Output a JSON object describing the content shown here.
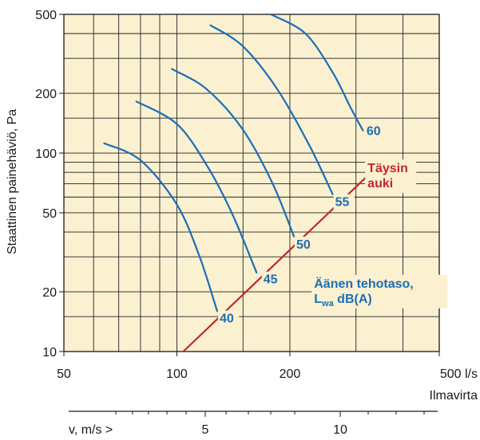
{
  "chart_data": {
    "type": "line",
    "x_scale": "log",
    "y_scale": "log",
    "xlim": [
      50,
      500
    ],
    "ylim": [
      10,
      500
    ],
    "grid": true,
    "plot_background": "#fbf0d0",
    "grid_color": "#222222",
    "x_tick_labels": [
      {
        "value": 50,
        "label": "50"
      },
      {
        "value": 100,
        "label": "100"
      },
      {
        "value": 200,
        "label": "200"
      },
      {
        "value": 500,
        "label": "500 l/s"
      }
    ],
    "y_tick_labels": [
      {
        "value": 10,
        "label": "10"
      },
      {
        "value": 20,
        "label": "20"
      },
      {
        "value": 50,
        "label": "50"
      },
      {
        "value": 100,
        "label": "100"
      },
      {
        "value": 200,
        "label": "200"
      },
      {
        "value": 500,
        "label": "500"
      }
    ],
    "xlabel": "Ilmavirta",
    "ylabel": "Staattinen painehäviö, Pa",
    "secondary_axis": {
      "label": "v, m/s >",
      "ticks": [
        {
          "value": 5,
          "label": "5",
          "x_at": 171
        },
        {
          "value": 10,
          "label": "10",
          "x_at": 340
        }
      ],
      "minor_tick_x_at": [
        59,
        80,
        100,
        123,
        147,
        197,
        225,
        253,
        283,
        375,
        410,
        445
      ]
    },
    "series": [
      {
        "name": "40",
        "color": "#1a6fb5",
        "points": [
          [
            64,
            112
          ],
          [
            80,
            92
          ],
          [
            100,
            55
          ],
          [
            115,
            30
          ],
          [
            128,
            16
          ]
        ]
      },
      {
        "name": "45",
        "color": "#1a6fb5",
        "points": [
          [
            78,
            182
          ],
          [
            100,
            140
          ],
          [
            120,
            87
          ],
          [
            140,
            50
          ],
          [
            163,
            25
          ]
        ]
      },
      {
        "name": "50",
        "color": "#1a6fb5",
        "points": [
          [
            97,
            265
          ],
          [
            120,
            210
          ],
          [
            150,
            131
          ],
          [
            180,
            70
          ],
          [
            205,
            38
          ]
        ]
      },
      {
        "name": "55",
        "color": "#1a6fb5",
        "points": [
          [
            123,
            440
          ],
          [
            150,
            345
          ],
          [
            185,
            210
          ],
          [
            225,
            110
          ],
          [
            260,
            62
          ]
        ]
      },
      {
        "name": "60",
        "color": "#1a6fb5",
        "points": [
          [
            178,
            500
          ],
          [
            220,
            400
          ],
          [
            260,
            255
          ],
          [
            290,
            170
          ],
          [
            313,
            130
          ]
        ]
      },
      {
        "name": "Täysin auki",
        "color": "#c1272d",
        "points": [
          [
            104,
            10
          ],
          [
            318,
            75
          ]
        ]
      }
    ],
    "curve_labels": [
      {
        "text": "40",
        "x": 130,
        "y": 14
      },
      {
        "text": "45",
        "x": 170,
        "y": 22
      },
      {
        "text": "50",
        "x": 208,
        "y": 33
      },
      {
        "text": "55",
        "x": 264,
        "y": 54
      },
      {
        "text": "60",
        "x": 320,
        "y": 123
      }
    ],
    "annotations": [
      {
        "lines": [
          "Täysin",
          "auki"
        ],
        "color": "#c1272d",
        "x": 322,
        "y": 80
      },
      {
        "lines": [
          "Äänen tehotaso,"
        ],
        "sub_line": {
          "prefix": "L",
          "sub": "wa",
          "suffix": " dB(A)"
        },
        "color": "#1a6fb5",
        "x": 232,
        "y": 21
      }
    ]
  }
}
